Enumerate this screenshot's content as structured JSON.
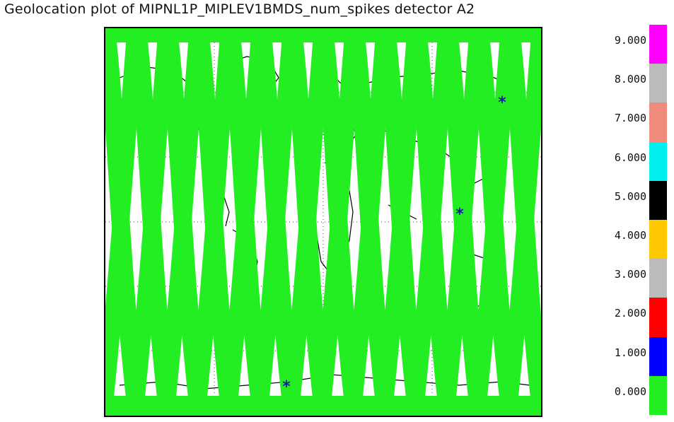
{
  "title": "Geolocation plot of MIPNL1P_MIPLEV1BMDS_num_spikes detector A2",
  "map": {
    "swath_color": "#22ee22",
    "coastline_color": "#000000",
    "marker_color": "#1a1aa6",
    "marker_symbol": "*",
    "swath_count": 14,
    "markers": [
      {
        "name": "marker-north-pacific"
      },
      {
        "name": "marker-indonesia"
      },
      {
        "name": "marker-antarctica"
      }
    ]
  },
  "colorbar": {
    "segments": [
      {
        "value": "9.000",
        "color": "#ff00ff"
      },
      {
        "value": "8.000",
        "color": "#bbbbbb"
      },
      {
        "value": "7.000",
        "color": "#f08a7a"
      },
      {
        "value": "6.000",
        "color": "#00f0f0"
      },
      {
        "value": "5.000",
        "color": "#000000"
      },
      {
        "value": "4.000",
        "color": "#ffc800"
      },
      {
        "value": "3.000",
        "color": "#bbbbbb"
      },
      {
        "value": "2.000",
        "color": "#ff0000"
      },
      {
        "value": "1.000",
        "color": "#0000ff"
      },
      {
        "value": "0.000",
        "color": "#22ee22"
      }
    ]
  }
}
